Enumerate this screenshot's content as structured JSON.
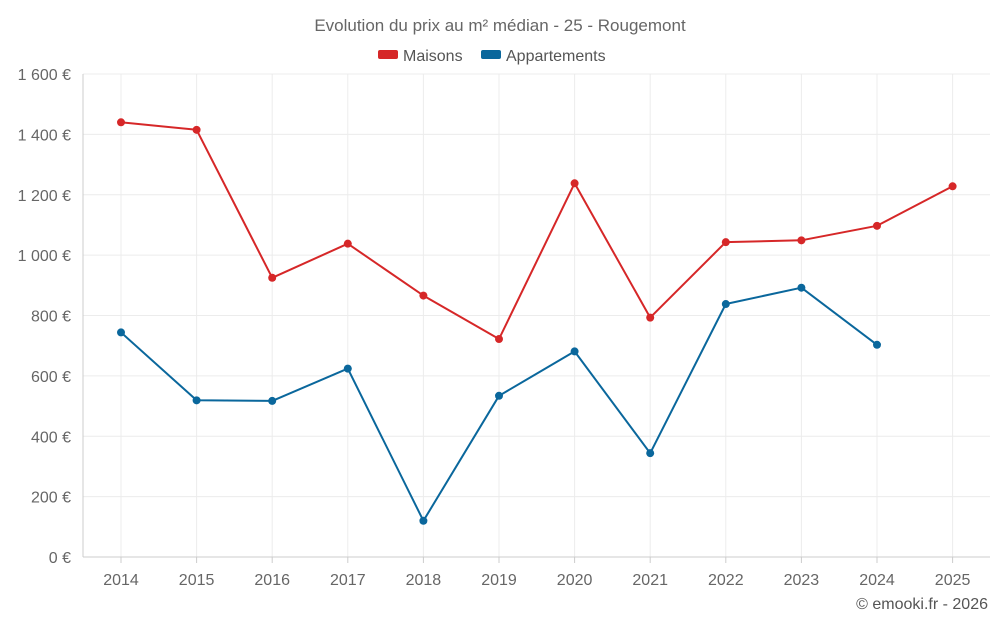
{
  "chart_data": {
    "type": "line",
    "title": "Evolution du prix au m² médian - 25 - Rougemont",
    "categories": [
      "2014",
      "2015",
      "2016",
      "2017",
      "2018",
      "2019",
      "2020",
      "2021",
      "2022",
      "2023",
      "2024",
      "2025"
    ],
    "series": [
      {
        "name": "Maisons",
        "color": "#d62728",
        "values": [
          1440,
          1415,
          925,
          1038,
          866,
          722,
          1238,
          793,
          1043,
          1049,
          1097,
          1228
        ]
      },
      {
        "name": "Appartements",
        "color": "#0a679c",
        "values": [
          744,
          519,
          517,
          624,
          120,
          534,
          681,
          344,
          838,
          892,
          703,
          null
        ]
      }
    ],
    "ylim": [
      0,
      1600
    ],
    "yticks": [
      {
        "value": 0,
        "label": "0 €"
      },
      {
        "value": 200,
        "label": "200 €"
      },
      {
        "value": 400,
        "label": "400 €"
      },
      {
        "value": 600,
        "label": "600 €"
      },
      {
        "value": 800,
        "label": "800 €"
      },
      {
        "value": 1000,
        "label": "1 000 €"
      },
      {
        "value": 1200,
        "label": "1 200 €"
      },
      {
        "value": 1400,
        "label": "1 400 €"
      },
      {
        "value": 1600,
        "label": "1 600 €"
      }
    ],
    "grid": true,
    "legend_position": "top-center",
    "credit": "© emooki.fr - 2026"
  }
}
